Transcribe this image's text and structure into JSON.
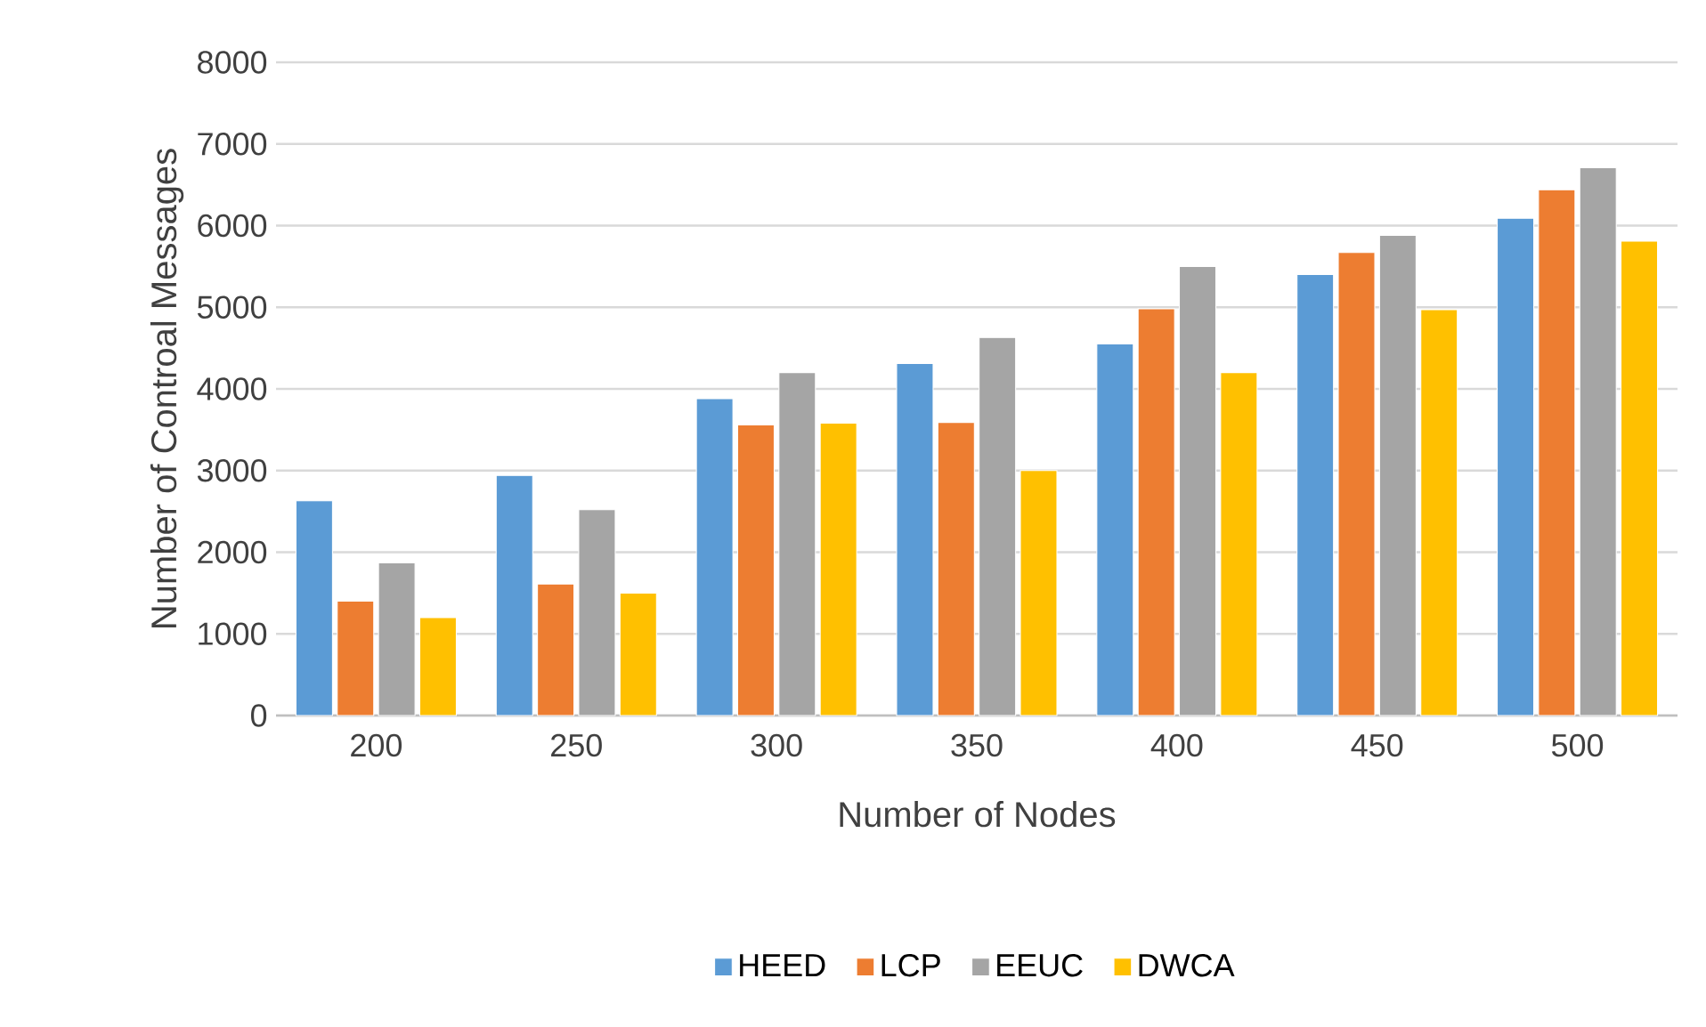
{
  "chart_data": {
    "type": "bar",
    "xlabel": "Number of Nodes",
    "ylabel": "Number of Controal Messages",
    "categories": [
      "200",
      "250",
      "300",
      "350",
      "400",
      "450",
      "500"
    ],
    "series": [
      {
        "name": "HEED",
        "color": "#5b9bd5",
        "values": [
          2630,
          2940,
          3880,
          4310,
          4550,
          5400,
          6090
        ]
      },
      {
        "name": "LCP",
        "color": "#ed7d31",
        "values": [
          1400,
          1610,
          3560,
          3590,
          4980,
          5670,
          6440
        ]
      },
      {
        "name": "EEUC",
        "color": "#a5a5a5",
        "values": [
          1870,
          2520,
          4200,
          4630,
          5500,
          5880,
          6710
        ]
      },
      {
        "name": "DWCA",
        "color": "#ffc000",
        "values": [
          1200,
          1500,
          3580,
          3000,
          4200,
          4970,
          5810
        ]
      }
    ],
    "ylim": [
      0,
      8000
    ],
    "yticks": [
      0,
      1000,
      2000,
      3000,
      4000,
      5000,
      6000,
      7000,
      8000
    ],
    "grid": "y",
    "legend": "bottom"
  }
}
